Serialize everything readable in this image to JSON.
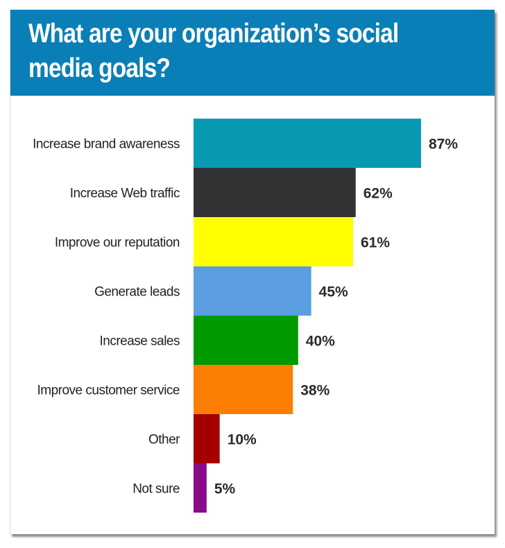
{
  "chart_data": {
    "type": "bar",
    "orientation": "horizontal",
    "title": "What are your organization’s social media goals?",
    "categories": [
      "Increase brand awareness",
      "Increase Web traffic",
      "Improve our reputation",
      "Generate leads",
      "Increase sales",
      "Improve customer service",
      "Other",
      "Not sure"
    ],
    "values": [
      87,
      62,
      61,
      45,
      40,
      38,
      10,
      5
    ],
    "value_labels": [
      "87%",
      "62%",
      "61%",
      "45%",
      "40%",
      "38%",
      "10%",
      "5%"
    ],
    "colors": [
      "#0899b3",
      "#333333",
      "#ffff00",
      "#5b9ee0",
      "#009900",
      "#fb7d02",
      "#a50000",
      "#8a0a8a"
    ],
    "xlim": [
      0,
      100
    ],
    "grid": false,
    "legend": "none"
  },
  "colors": {
    "header_background": "#0a7fb7"
  }
}
